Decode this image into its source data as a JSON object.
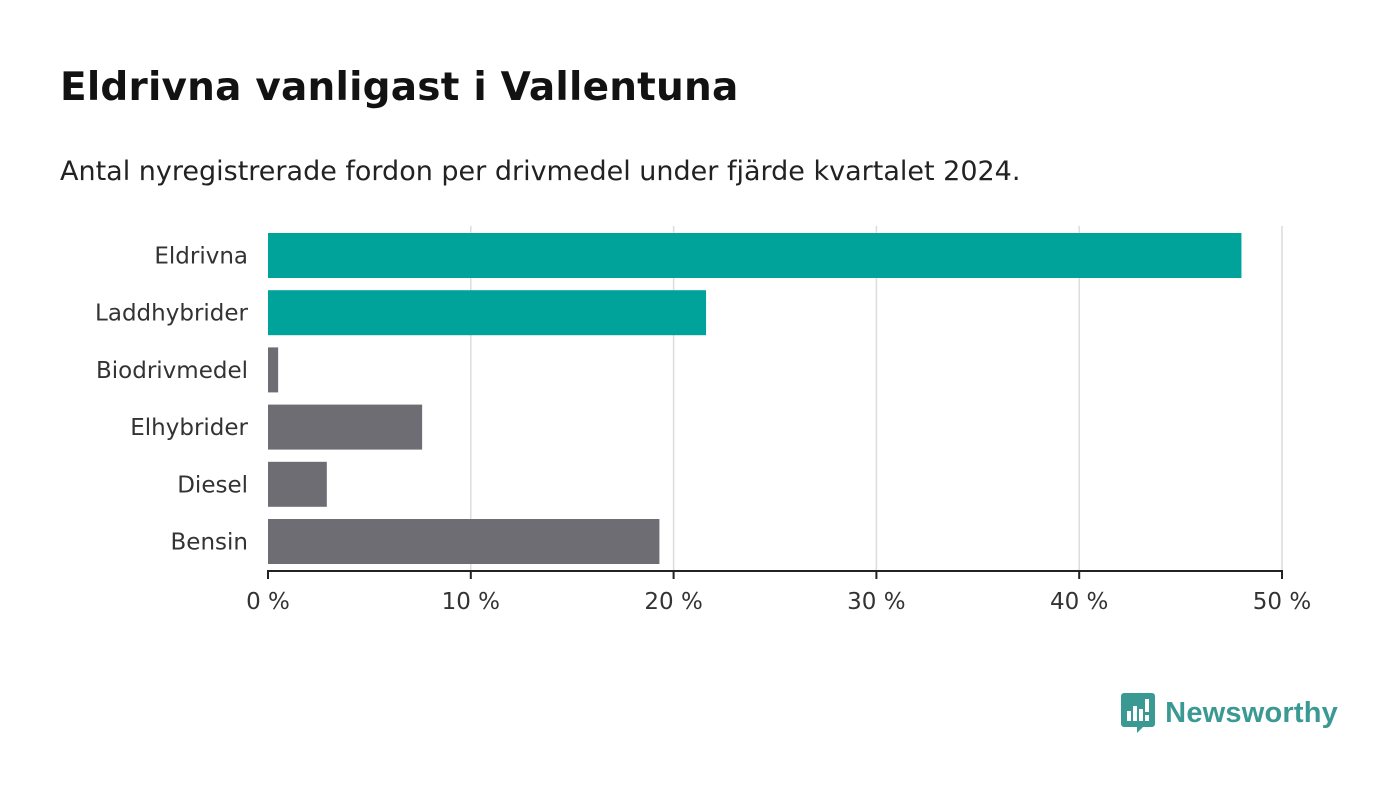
{
  "header": {
    "title": "Eldrivna vanligast i Vallentuna",
    "subtitle": "Antal nyregistrerade fordon per drivmedel under fjärde kvartalet 2024."
  },
  "brand": {
    "name": "Newsworthy",
    "color": "#3a9a93"
  },
  "chart_data": {
    "type": "bar",
    "orientation": "horizontal",
    "title": "Eldrivna vanligast i Vallentuna",
    "subtitle": "Antal nyregistrerade fordon per drivmedel under fjärde kvartalet 2024.",
    "categories": [
      "Eldrivna",
      "Laddhybrider",
      "Biodrivmedel",
      "Elhybrider",
      "Diesel",
      "Bensin"
    ],
    "values": [
      48.0,
      21.6,
      0.5,
      7.6,
      2.9,
      19.3
    ],
    "unit": "%",
    "xlim": [
      0,
      50
    ],
    "xticks": [
      0,
      10,
      20,
      30,
      40,
      50
    ],
    "xtick_labels": [
      "0 %",
      "10 %",
      "20 %",
      "30 %",
      "40 %",
      "50 %"
    ],
    "grid": true,
    "highlight_color": "#00a39a",
    "default_color": "#6e6d74",
    "highlighted": [
      "Eldrivna",
      "Laddhybrider"
    ]
  }
}
